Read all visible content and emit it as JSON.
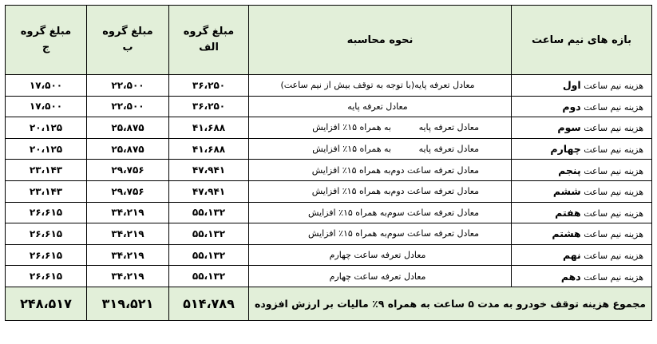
{
  "headers": {
    "period": "بازه های نیم ساعت",
    "method": "نحوه محاسبه",
    "groupA": [
      "مبلغ گروه",
      "الف"
    ],
    "groupB": [
      "مبلغ گروه",
      "ب"
    ],
    "groupC": [
      "مبلغ گروه",
      "ج"
    ]
  },
  "rows": [
    {
      "period_prefix": "هزینه نیم ساعت",
      "period_ord": "اول",
      "method_base": "معادل تعرفه پایه(با توجه به توقف بیش از نیم ساعت)",
      "method_inc": "",
      "a": "۳۶،۲۵۰",
      "b": "۲۲،۵۰۰",
      "c": "۱۷،۵۰۰"
    },
    {
      "period_prefix": "هزینه نیم ساعت",
      "period_ord": "دوم",
      "method_base": "معادل تعرفه پایه",
      "method_inc": "",
      "a": "۳۶،۲۵۰",
      "b": "۲۲،۵۰۰",
      "c": "۱۷،۵۰۰"
    },
    {
      "period_prefix": "هزینه نیم ساعت",
      "period_ord": "سوم",
      "method_base": "معادل تعرفه پایه",
      "method_inc": "به همراه ۱۵٪ افزایش",
      "a": "۴۱،۶۸۸",
      "b": "۲۵،۸۷۵",
      "c": "۲۰،۱۲۵"
    },
    {
      "period_prefix": "هزینه نیم ساعت",
      "period_ord": "چهارم",
      "method_base": "معادل تعرفه پایه",
      "method_inc": "به همراه ۱۵٪ افزایش",
      "a": "۴۱،۶۸۸",
      "b": "۲۵،۸۷۵",
      "c": "۲۰،۱۲۵"
    },
    {
      "period_prefix": "هزینه نیم ساعت",
      "period_ord": "پنجم",
      "method_base": "معادل تعرفه ساعت دوم",
      "method_inc": "به همراه ۱۵٪ افزایش",
      "a": "۴۷،۹۴۱",
      "b": "۲۹،۷۵۶",
      "c": "۲۳،۱۴۳"
    },
    {
      "period_prefix": "هزینه نیم ساعت",
      "period_ord": "ششم",
      "method_base": "معادل تعرفه ساعت دوم",
      "method_inc": "به همراه ۱۵٪ افزایش",
      "a": "۴۷،۹۴۱",
      "b": "۲۹،۷۵۶",
      "c": "۲۳،۱۴۳"
    },
    {
      "period_prefix": "هزینه نیم ساعت",
      "period_ord": "هفتم",
      "method_base": "معادل تعرفه ساعت سوم",
      "method_inc": "به همراه ۱۵٪ افزایش",
      "a": "۵۵،۱۳۲",
      "b": "۳۴،۲۱۹",
      "c": "۲۶،۶۱۵"
    },
    {
      "period_prefix": "هزینه نیم ساعت",
      "period_ord": "هشتم",
      "method_base": "معادل تعرفه ساعت سوم",
      "method_inc": "به همراه ۱۵٪ افزایش",
      "a": "۵۵،۱۳۲",
      "b": "۳۴،۲۱۹",
      "c": "۲۶،۶۱۵"
    },
    {
      "period_prefix": "هزینه نیم ساعت",
      "period_ord": "نهم",
      "method_base": "معادل تعرفه ساعت چهارم",
      "method_inc": "",
      "a": "۵۵،۱۳۲",
      "b": "۳۴،۲۱۹",
      "c": "۲۶،۶۱۵"
    },
    {
      "period_prefix": "هزینه نیم ساعت",
      "period_ord": "دهم",
      "method_base": "معادل تعرفه ساعت چهارم",
      "method_inc": "",
      "a": "۵۵،۱۳۲",
      "b": "۳۴،۲۱۹",
      "c": "۲۶،۶۱۵"
    }
  ],
  "total": {
    "label": "مجموع هزینه توقف خودرو به مدت ۵ ساعت به همراه ۹٪ مالیات بر ارزش افزوده",
    "a": "۵۱۴،۷۸۹",
    "b": "۳۱۹،۵۲۱",
    "c": "۲۴۸،۵۱۷"
  },
  "colors": {
    "header_bg": "#e2efd9",
    "border": "#000000"
  }
}
